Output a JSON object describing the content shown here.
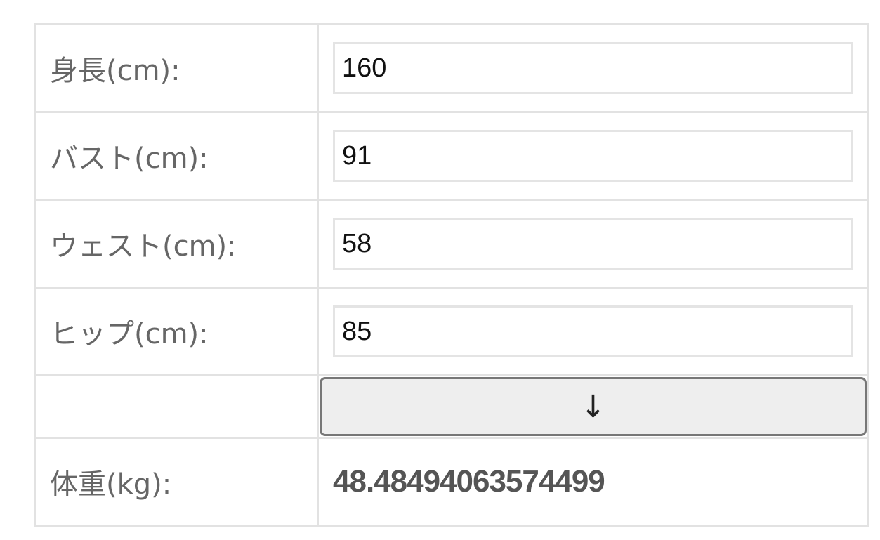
{
  "fields": [
    {
      "label": "身長(cm):",
      "value": "160"
    },
    {
      "label": "バスト(cm):",
      "value": "91"
    },
    {
      "label": "ウェスト(cm):",
      "value": "58"
    },
    {
      "label": "ヒップ(cm):",
      "value": "85"
    }
  ],
  "calculate_button": {
    "label": "↓",
    "icon": "arrow-down-icon"
  },
  "result": {
    "label": "体重(kg):",
    "value": "48.48494063574499"
  }
}
